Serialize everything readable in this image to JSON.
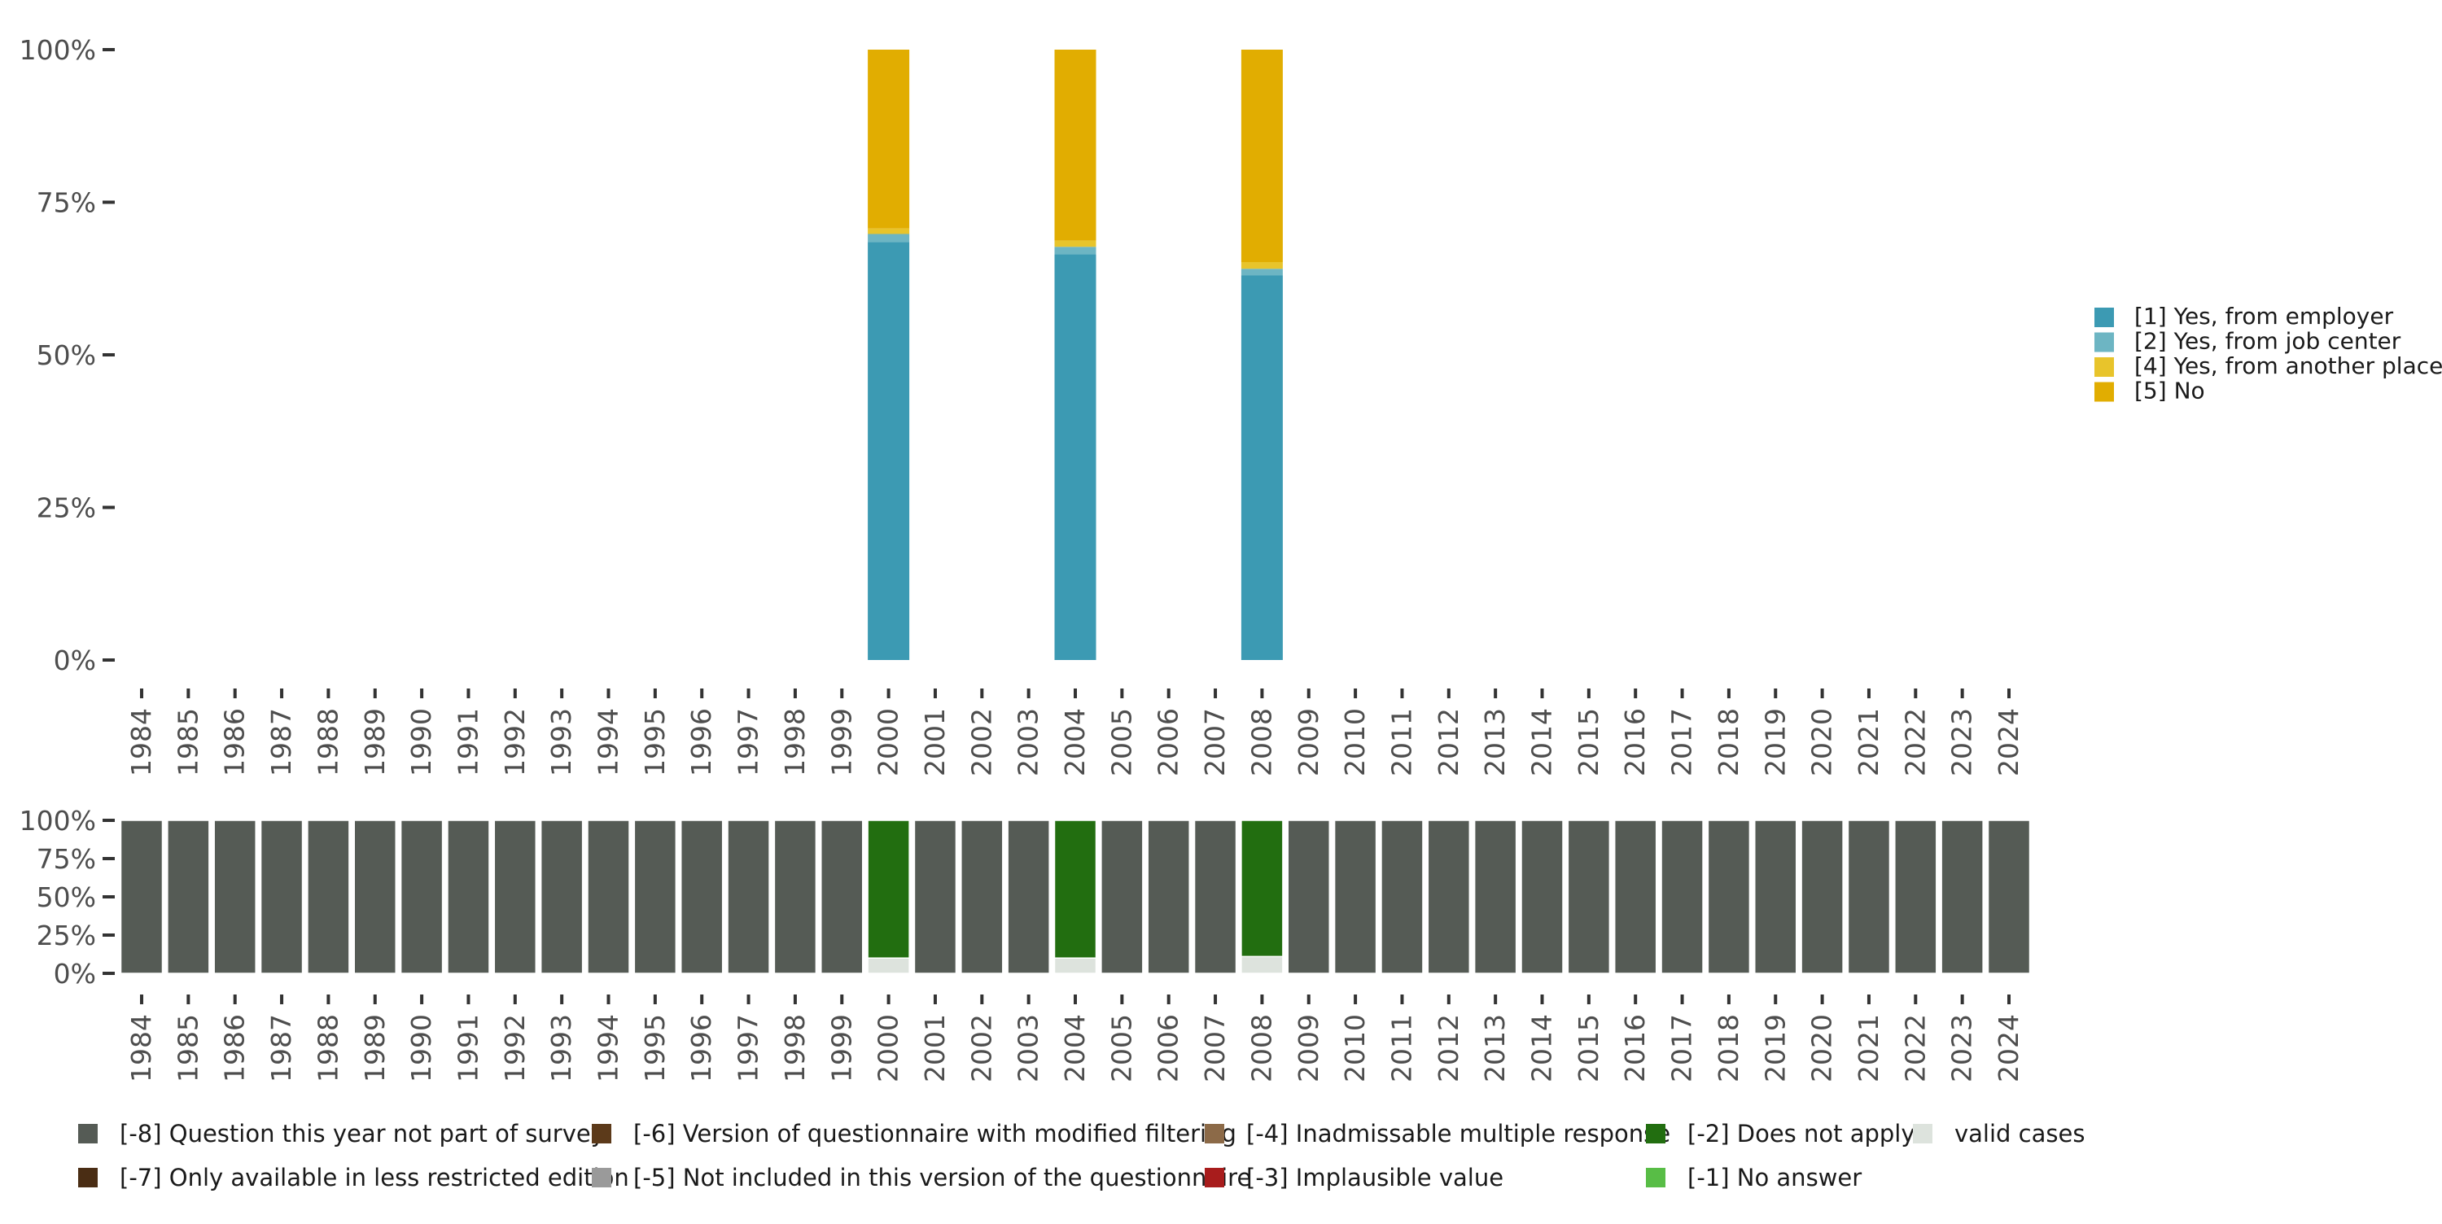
{
  "chart_data": [
    {
      "type": "bar",
      "stacked": true,
      "title": "",
      "xlabel": "",
      "ylabel": "",
      "ylim": [
        0,
        100
      ],
      "y_ticks": [
        "0%",
        "25%",
        "50%",
        "75%",
        "100%"
      ],
      "categories": [
        "1984",
        "1985",
        "1986",
        "1987",
        "1988",
        "1989",
        "1990",
        "1991",
        "1992",
        "1993",
        "1994",
        "1995",
        "1996",
        "1997",
        "1998",
        "1999",
        "2000",
        "2001",
        "2002",
        "2003",
        "2004",
        "2005",
        "2006",
        "2007",
        "2008",
        "2009",
        "2010",
        "2011",
        "2012",
        "2013",
        "2014",
        "2015",
        "2016",
        "2017",
        "2018",
        "2019",
        "2020",
        "2021",
        "2022",
        "2023",
        "2024"
      ],
      "legend_position": "right",
      "series": [
        {
          "name": "[1] Yes, from employer",
          "color": "#3c9ab3",
          "values": {
            "2000": 68.5,
            "2004": 66.5,
            "2008": 63.0
          }
        },
        {
          "name": "[2] Yes, from job center",
          "color": "#6db5c3",
          "values": {
            "2000": 1.3,
            "2004": 1.2,
            "2008": 1.1
          }
        },
        {
          "name": "[4] Yes, from another place",
          "color": "#e8c42b",
          "values": {
            "2000": 0.9,
            "2004": 1.0,
            "2008": 1.1
          }
        },
        {
          "name": "[5] No",
          "color": "#e1ad01",
          "values": {
            "2000": 29.3,
            "2004": 31.3,
            "2008": 34.8
          }
        }
      ]
    },
    {
      "type": "bar",
      "stacked": true,
      "title": "",
      "xlabel": "",
      "ylabel": "",
      "ylim": [
        0,
        100
      ],
      "y_ticks": [
        "0%",
        "25%",
        "50%",
        "75%",
        "100%"
      ],
      "categories": [
        "1984",
        "1985",
        "1986",
        "1987",
        "1988",
        "1989",
        "1990",
        "1991",
        "1992",
        "1993",
        "1994",
        "1995",
        "1996",
        "1997",
        "1998",
        "1999",
        "2000",
        "2001",
        "2002",
        "2003",
        "2004",
        "2005",
        "2006",
        "2007",
        "2008",
        "2009",
        "2010",
        "2011",
        "2012",
        "2013",
        "2014",
        "2015",
        "2016",
        "2017",
        "2018",
        "2019",
        "2020",
        "2021",
        "2022",
        "2023",
        "2024"
      ],
      "legend_position": "bottom",
      "series": [
        {
          "name": "valid cases",
          "color": "#dde3dd",
          "values": {
            "2000": 10,
            "2004": 10,
            "2008": 11
          }
        },
        {
          "name": "[-2] Does not apply",
          "color": "#226e10",
          "values": {
            "2000": 90,
            "2004": 90,
            "2008": 89
          }
        },
        {
          "name": "[-8] Question this year not part of survey",
          "color": "#555b55",
          "values": {
            "1984": 100,
            "1985": 100,
            "1986": 100,
            "1987": 100,
            "1988": 100,
            "1989": 100,
            "1990": 100,
            "1991": 100,
            "1992": 100,
            "1993": 100,
            "1994": 100,
            "1995": 100,
            "1996": 100,
            "1997": 100,
            "1998": 100,
            "1999": 100,
            "2001": 100,
            "2002": 100,
            "2003": 100,
            "2005": 100,
            "2006": 100,
            "2007": 100,
            "2009": 100,
            "2010": 100,
            "2011": 100,
            "2012": 100,
            "2013": 100,
            "2014": 100,
            "2015": 100,
            "2016": 100,
            "2017": 100,
            "2018": 100,
            "2019": 100,
            "2020": 100,
            "2021": 100,
            "2022": 100,
            "2023": 100,
            "2024": 100
          }
        }
      ],
      "legend_entries": [
        {
          "name": "[-8] Question this year not part of survey",
          "color": "#555b55"
        },
        {
          "name": "[-7] Only available in less restricted edition",
          "color": "#4a2d14"
        },
        {
          "name": "[-6] Version of questionnaire with modified filtering",
          "color": "#5c3a1a"
        },
        {
          "name": "[-5] Not included in this version of the questionnaire",
          "color": "#9a9a9a"
        },
        {
          "name": "[-4] Inadmissable multiple response",
          "color": "#8c6a48"
        },
        {
          "name": "[-3] Implausible value",
          "color": "#a81c1c"
        },
        {
          "name": "[-2] Does not apply",
          "color": "#226e10"
        },
        {
          "name": "[-1] No answer",
          "color": "#58bd46"
        },
        {
          "name": "valid cases",
          "color": "#dde3dd"
        }
      ]
    }
  ]
}
